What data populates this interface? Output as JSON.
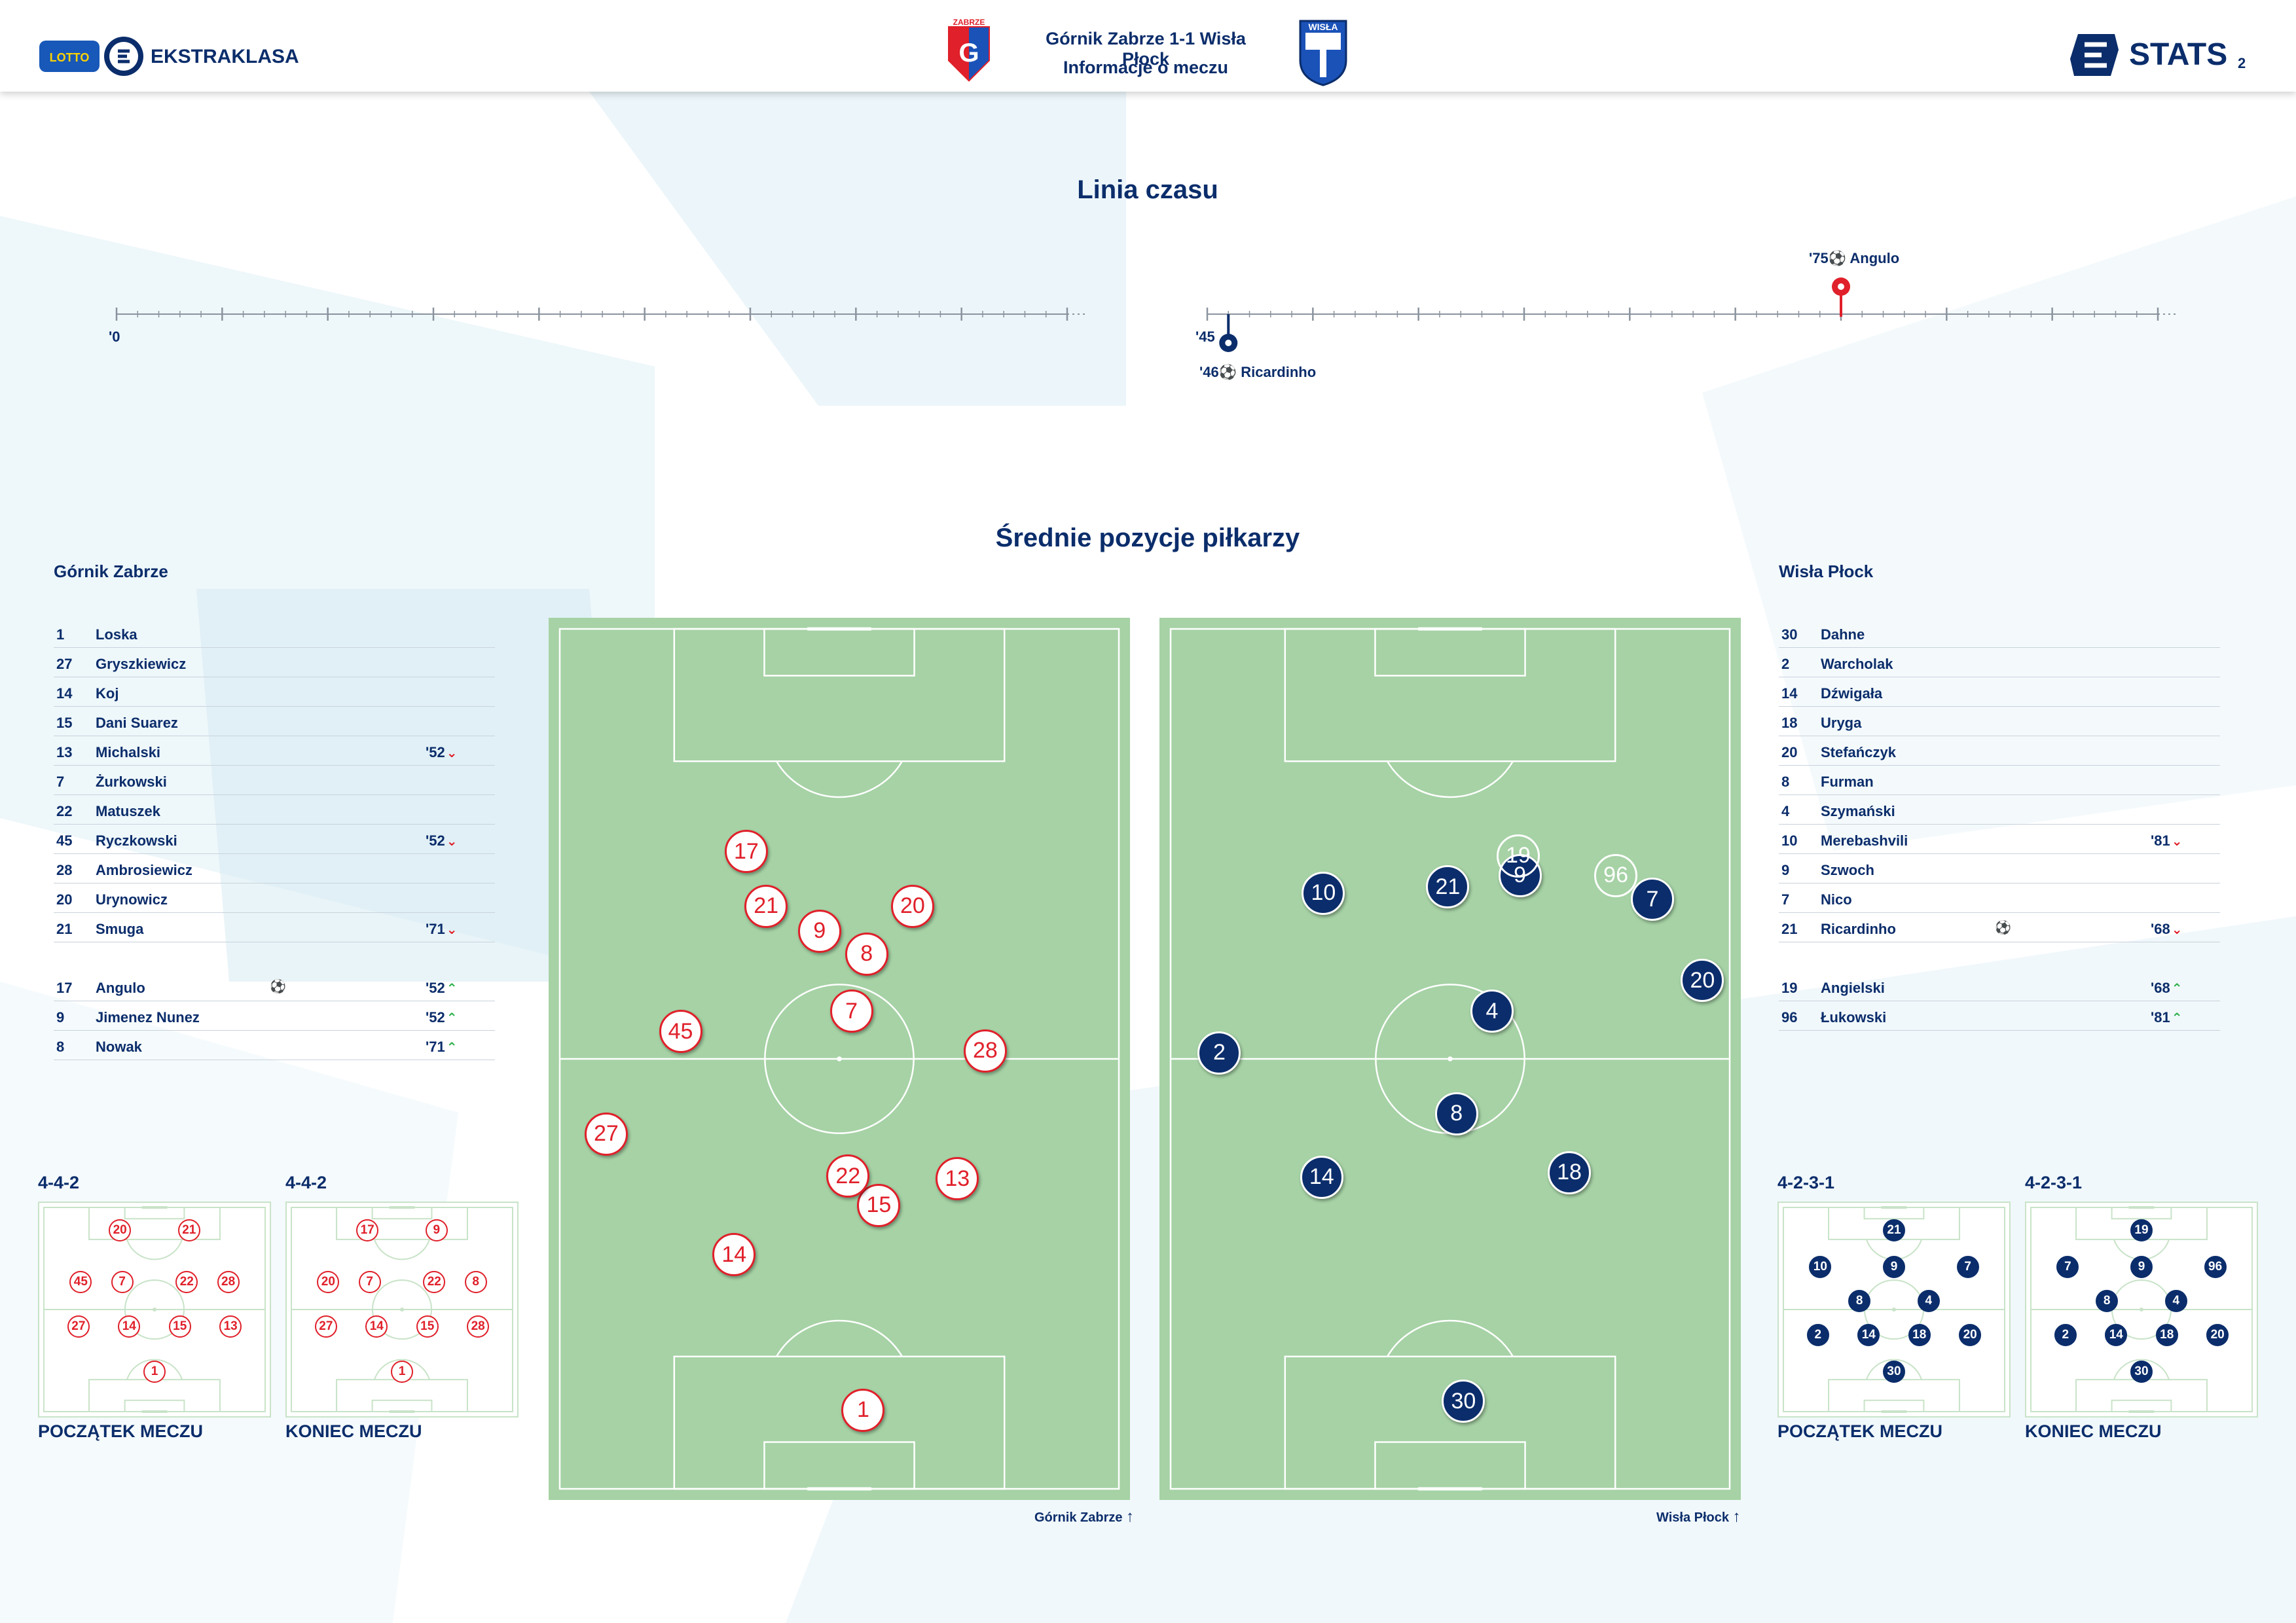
{
  "header": {
    "brand": "EKSTRAKLASA",
    "lotto": "LOTTO",
    "match_title": "Górnik Zabrze 1-1 Wisła Płock",
    "subtitle": "Informacje o meczu",
    "stats_label": "STATS",
    "page_number": "2",
    "home_crest": "gornik-crest",
    "away_crest": "wisla-crest"
  },
  "timeline": {
    "title": "Linia czasu",
    "first_half_start": "'0",
    "second_half_start": "'45",
    "events": [
      {
        "minute": "'75",
        "player": "Angulo",
        "team": "home",
        "type": "goal",
        "time": 75
      },
      {
        "minute": "'46",
        "player": "Ricardinho",
        "team": "away",
        "type": "goal",
        "time": 46
      }
    ]
  },
  "positions": {
    "title": "Średnie pozycje piłkarzy",
    "home_pitch_label": "Górnik Zabrze",
    "away_pitch_label": "Wisła Płock"
  },
  "gornik": {
    "name": "Górnik Zabrze",
    "starters": [
      {
        "no": "1",
        "name": "Loska",
        "min": "",
        "dir": ""
      },
      {
        "no": "27",
        "name": "Gryszkiewicz",
        "min": "",
        "dir": ""
      },
      {
        "no": "14",
        "name": "Koj",
        "min": "",
        "dir": ""
      },
      {
        "no": "15",
        "name": "Dani Suarez",
        "min": "",
        "dir": ""
      },
      {
        "no": "13",
        "name": "Michalski",
        "min": "'52",
        "dir": "down"
      },
      {
        "no": "7",
        "name": "Żurkowski",
        "min": "",
        "dir": ""
      },
      {
        "no": "22",
        "name": "Matuszek",
        "min": "",
        "dir": ""
      },
      {
        "no": "45",
        "name": "Ryczkowski",
        "min": "'52",
        "dir": "down"
      },
      {
        "no": "28",
        "name": "Ambrosiewicz",
        "min": "",
        "dir": ""
      },
      {
        "no": "20",
        "name": "Urynowicz",
        "min": "",
        "dir": ""
      },
      {
        "no": "21",
        "name": "Smuga",
        "min": "'71",
        "dir": "down"
      }
    ],
    "subs": [
      {
        "no": "17",
        "name": "Angulo",
        "min": "'52",
        "dir": "up",
        "goal": true
      },
      {
        "no": "9",
        "name": "Jimenez Nunez",
        "min": "'52",
        "dir": "up"
      },
      {
        "no": "8",
        "name": "Nowak",
        "min": "'71",
        "dir": "up"
      }
    ],
    "formation_start": "4-4-2",
    "formation_end": "4-4-2",
    "caption_start": "POCZĄTEK MECZU",
    "caption_end": "KONIEC MECZU"
  },
  "wisla": {
    "name": "Wisła Płock",
    "starters": [
      {
        "no": "30",
        "name": "Dahne",
        "min": "",
        "dir": ""
      },
      {
        "no": "2",
        "name": "Warcholak",
        "min": "",
        "dir": ""
      },
      {
        "no": "14",
        "name": "Dźwigała",
        "min": "",
        "dir": ""
      },
      {
        "no": "18",
        "name": "Uryga",
        "min": "",
        "dir": ""
      },
      {
        "no": "20",
        "name": "Stefańczyk",
        "min": "",
        "dir": ""
      },
      {
        "no": "8",
        "name": "Furman",
        "min": "",
        "dir": ""
      },
      {
        "no": "4",
        "name": "Szymański",
        "min": "",
        "dir": ""
      },
      {
        "no": "10",
        "name": "Merebashvili",
        "min": "'81",
        "dir": "down"
      },
      {
        "no": "9",
        "name": "Szwoch",
        "min": "",
        "dir": ""
      },
      {
        "no": "7",
        "name": "Nico",
        "min": "",
        "dir": ""
      },
      {
        "no": "21",
        "name": "Ricardinho",
        "min": "'68",
        "dir": "down",
        "goal": true
      }
    ],
    "subs": [
      {
        "no": "19",
        "name": "Angielski",
        "min": "'68",
        "dir": "up"
      },
      {
        "no": "96",
        "name": "Łukowski",
        "min": "'81",
        "dir": "up"
      }
    ],
    "formation_start": "4-2-3-1",
    "formation_end": "4-2-3-1",
    "caption_start": "POCZĄTEK MECZU",
    "caption_end": "KONIEC MECZU"
  },
  "colors": {
    "navy": "#0b2d6b",
    "red": "#e0202a",
    "green_up": "#2bb04a",
    "pitch": "#a6d2a5"
  }
}
